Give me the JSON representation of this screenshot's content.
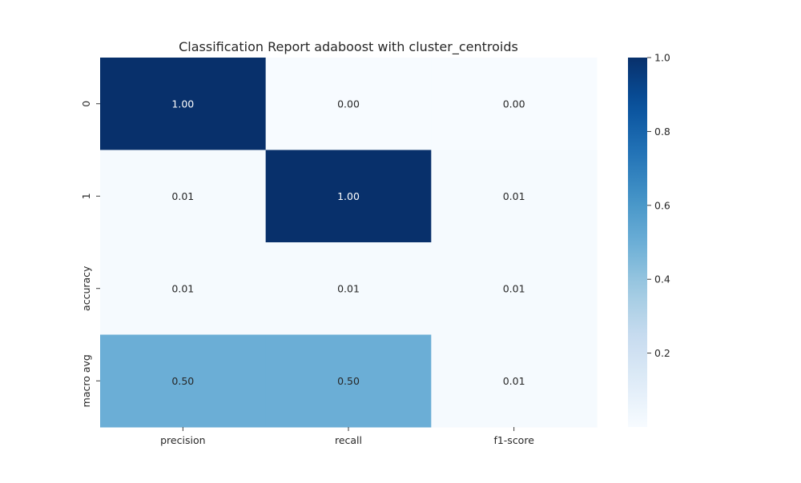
{
  "chart_data": {
    "type": "heatmap",
    "title": "Classification Report adaboost with cluster_centroids",
    "xlabel": "",
    "ylabel": "",
    "x_categories": [
      "precision",
      "recall",
      "f1-score"
    ],
    "y_categories": [
      "0",
      "1",
      "accuracy",
      "macro avg"
    ],
    "values": [
      [
        1.0,
        0.0,
        0.0
      ],
      [
        0.01,
        1.0,
        0.01
      ],
      [
        0.01,
        0.01,
        0.01
      ],
      [
        0.5,
        0.5,
        0.01
      ]
    ],
    "annotations": [
      [
        "1.00",
        "0.00",
        "0.00"
      ],
      [
        "0.01",
        "1.00",
        "0.01"
      ],
      [
        "0.01",
        "0.01",
        "0.01"
      ],
      [
        "0.50",
        "0.50",
        "0.01"
      ]
    ],
    "colormap": "Blues",
    "vmin": 0.0,
    "vmax": 1.0,
    "colorbar_ticks": [
      "0.2",
      "0.4",
      "0.6",
      "0.8",
      "1.0"
    ],
    "colorbar_tick_values": [
      0.2,
      0.4,
      0.6,
      0.8,
      1.0
    ],
    "grid": false,
    "colors": {
      "low": "#f7fbff",
      "high": "#08306b",
      "text_dark": "#262626",
      "text_light": "#ffffff"
    }
  }
}
